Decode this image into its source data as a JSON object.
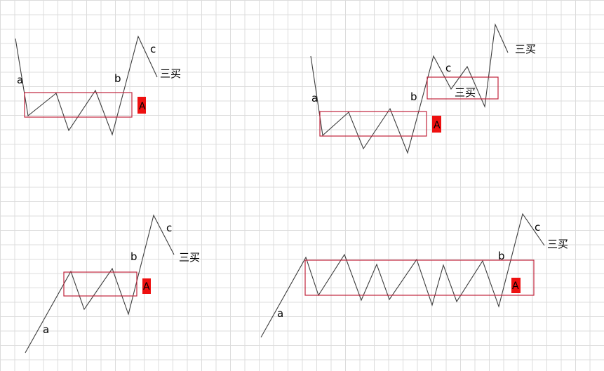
{
  "colors": {
    "grid": "#dcdcdc",
    "line": "#3c3c3c",
    "zone_border": "#c0243c",
    "zone_tag_fill": "#ee1010"
  },
  "diagrams": [
    {
      "labels": {
        "a": "a",
        "b": "b",
        "c": "c",
        "buy": "三买",
        "zone": "A"
      }
    },
    {
      "labels": {
        "a": "a",
        "b": "b",
        "c": "c",
        "buy": "三买",
        "zone": "A"
      }
    },
    {
      "labels": {
        "a": "a",
        "b": "b",
        "c": "c",
        "buy": "三买",
        "zone": "A"
      }
    },
    {
      "labels": {
        "a": "a",
        "b": "b",
        "c": "c",
        "buy": "三买",
        "zone": "A"
      }
    }
  ]
}
